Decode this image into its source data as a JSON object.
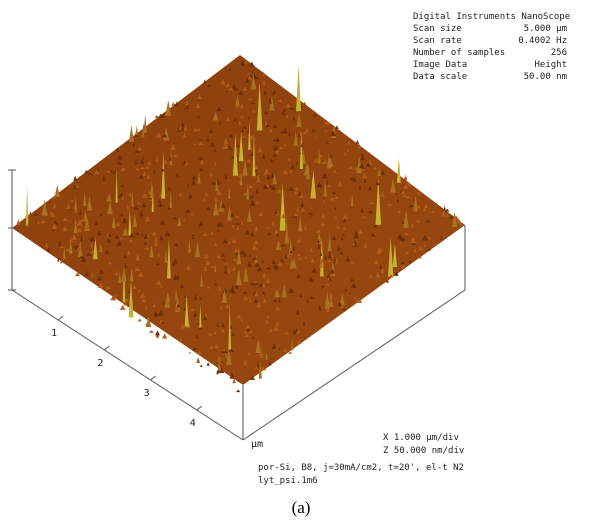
{
  "header": {
    "title": "Digital Instruments NanoScope"
  },
  "info": [
    {
      "label": "Scan size",
      "value": "5.000 µm"
    },
    {
      "label": "Scan rate",
      "value": "0.4002 Hz"
    },
    {
      "label": "Number of samples",
      "value": "256"
    },
    {
      "label": "Image Data",
      "value": "Height"
    },
    {
      "label": "Data scale",
      "value": "50.00 nm"
    }
  ],
  "axis": {
    "ticks": [
      "1",
      "2",
      "3",
      "4"
    ],
    "unit": "µm"
  },
  "scale": {
    "x": "X  1.000 µm/div",
    "z": "Z  50.000 nm/div"
  },
  "footer": {
    "line1": "por-Si, B8, j=30mA/cm2, t=20', el-t N2",
    "line2": "lyt_psi.1m6"
  },
  "caption": "(a)"
}
